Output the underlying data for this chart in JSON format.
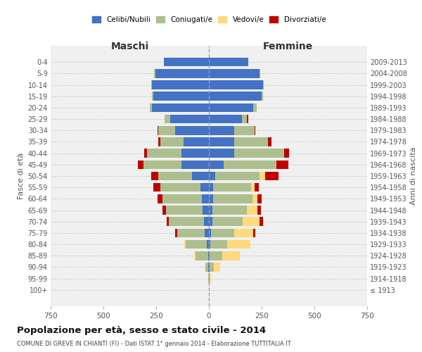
{
  "age_groups": [
    "0-4",
    "5-9",
    "10-14",
    "15-19",
    "20-24",
    "25-29",
    "30-34",
    "35-39",
    "40-44",
    "45-49",
    "50-54",
    "55-59",
    "60-64",
    "65-69",
    "70-74",
    "75-79",
    "80-84",
    "85-89",
    "90-94",
    "95-99",
    "100+"
  ],
  "birth_years": [
    "2009-2013",
    "2004-2008",
    "1999-2003",
    "1994-1998",
    "1989-1993",
    "1984-1988",
    "1979-1983",
    "1974-1978",
    "1969-1973",
    "1964-1968",
    "1959-1963",
    "1954-1958",
    "1949-1953",
    "1944-1948",
    "1939-1943",
    "1934-1938",
    "1929-1933",
    "1924-1928",
    "1919-1923",
    "1914-1918",
    "≤ 1913"
  ],
  "male": {
    "celibi": [
      215,
      255,
      270,
      265,
      270,
      185,
      160,
      120,
      130,
      130,
      80,
      40,
      35,
      30,
      25,
      20,
      10,
      5,
      2,
      1,
      0
    ],
    "coniugati": [
      0,
      5,
      5,
      5,
      10,
      25,
      80,
      110,
      165,
      180,
      160,
      190,
      185,
      175,
      165,
      130,
      100,
      60,
      15,
      2,
      0
    ],
    "vedovi": [
      0,
      0,
      0,
      0,
      0,
      0,
      0,
      0,
      0,
      0,
      0,
      0,
      0,
      0,
      0,
      0,
      8,
      5,
      0,
      0,
      0
    ],
    "divorziati": [
      0,
      0,
      0,
      0,
      0,
      0,
      5,
      10,
      12,
      28,
      35,
      35,
      25,
      15,
      10,
      10,
      0,
      0,
      0,
      0,
      0
    ]
  },
  "female": {
    "nubili": [
      185,
      240,
      255,
      250,
      210,
      155,
      120,
      120,
      120,
      70,
      30,
      20,
      20,
      15,
      15,
      10,
      5,
      3,
      2,
      1,
      0
    ],
    "coniugate": [
      0,
      3,
      5,
      5,
      15,
      25,
      95,
      160,
      235,
      250,
      210,
      180,
      185,
      165,
      145,
      110,
      80,
      60,
      20,
      3,
      0
    ],
    "vedove": [
      0,
      0,
      0,
      0,
      0,
      0,
      0,
      0,
      0,
      0,
      25,
      15,
      25,
      50,
      80,
      90,
      110,
      85,
      30,
      5,
      1
    ],
    "divorziate": [
      0,
      0,
      0,
      0,
      0,
      5,
      5,
      15,
      25,
      55,
      65,
      20,
      20,
      15,
      15,
      10,
      0,
      0,
      0,
      0,
      0
    ]
  },
  "colors": {
    "celibi": "#4472C4",
    "coniugati": "#ADBF8E",
    "vedovi": "#FFD97D",
    "divorziati": "#C00000"
  },
  "title": "Popolazione per età, sesso e stato civile - 2014",
  "subtitle": "COMUNE DI GREVE IN CHIANTI (FI) - Dati ISTAT 1° gennaio 2014 - Elaborazione TUTTITALIA.IT",
  "xlabel_left": "Maschi",
  "xlabel_right": "Femmine",
  "ylabel_left": "Fasce di età",
  "ylabel_right": "Anni di nascita",
  "xlim": 750,
  "bg_color": "#f0f0f0",
  "grid_color": "#cccccc"
}
